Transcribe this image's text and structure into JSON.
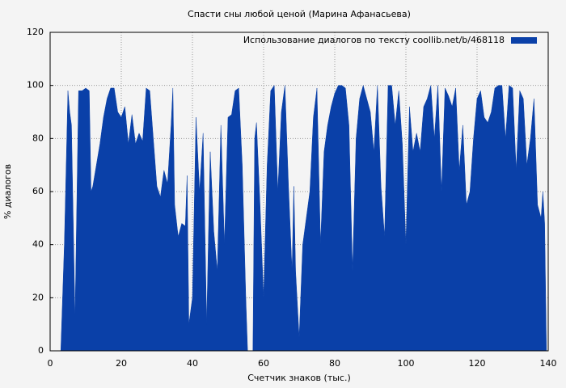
{
  "chart_data": {
    "type": "area",
    "title": "Спасти сны любой ценой (Марина Афанасьева)",
    "x_label": "Счетчик знаков (тыс.)",
    "y_label": "% диалогов",
    "legend": "top-right",
    "grid": true,
    "xlim": [
      0,
      140
    ],
    "xticks": [
      0,
      20,
      40,
      60,
      80,
      100,
      120,
      140
    ],
    "ylim": [
      0,
      120
    ],
    "yticks": [
      0,
      20,
      40,
      60,
      80,
      100,
      120
    ],
    "x": [
      0,
      3,
      4,
      5,
      5.5,
      6,
      7,
      8,
      9,
      10,
      11,
      11.5,
      12,
      13,
      14,
      15,
      16,
      17,
      18,
      19,
      20,
      21,
      22,
      23,
      24,
      25,
      26,
      27,
      28,
      29,
      30,
      31,
      32,
      33,
      34,
      34.5,
      35,
      36,
      37,
      38,
      38.5,
      39,
      40,
      41,
      42,
      43,
      44,
      45,
      46,
      47,
      48,
      49,
      50,
      51,
      52,
      53,
      54,
      55,
      55.5,
      56,
      57,
      57.5,
      58,
      59,
      60,
      61,
      62,
      63,
      64,
      65,
      66,
      67,
      68,
      68.5,
      69,
      70,
      71,
      72,
      73,
      74,
      75,
      76,
      77,
      78,
      79,
      80,
      81,
      82,
      83,
      84,
      85,
      86,
      87,
      88,
      89,
      90,
      91,
      92,
      93,
      94,
      95,
      96,
      97,
      98,
      99,
      100,
      101,
      102,
      103,
      104,
      105,
      106,
      107,
      108,
      109,
      110,
      111,
      112,
      113,
      114,
      115,
      116,
      117,
      118,
      119,
      120,
      121,
      122,
      123,
      124,
      125,
      126,
      127,
      128,
      129,
      130,
      131,
      132,
      133,
      134,
      135,
      136,
      137,
      138,
      138.5,
      139,
      139.5
    ],
    "series": [
      {
        "name": "Использование диалогов по тексту  coollib.net/b/468118",
        "color": "#0a40a8",
        "values": [
          0,
          0,
          40,
          98,
          90,
          85,
          12,
          98,
          98,
          99,
          98,
          60,
          62,
          70,
          78,
          88,
          95,
          99,
          99,
          90,
          88,
          92,
          78,
          89,
          78,
          82,
          79,
          99,
          98,
          80,
          62,
          58,
          68,
          63,
          85,
          99,
          55,
          43,
          48,
          47,
          66,
          10,
          20,
          88,
          60,
          82,
          10,
          75,
          45,
          30,
          85,
          40,
          88,
          89,
          98,
          99,
          70,
          20,
          0,
          0,
          0,
          80,
          86,
          55,
          20,
          70,
          98,
          100,
          60,
          90,
          100,
          62,
          30,
          62,
          30,
          5,
          40,
          50,
          60,
          88,
          99,
          40,
          75,
          85,
          92,
          97,
          100,
          100,
          99,
          85,
          30,
          80,
          95,
          100,
          95,
          90,
          75,
          100,
          62,
          43,
          100,
          100,
          85,
          98,
          78,
          40,
          92,
          75,
          82,
          75,
          92,
          95,
          100,
          80,
          100,
          60,
          99,
          96,
          92,
          99,
          68,
          85,
          55,
          60,
          80,
          95,
          98,
          88,
          86,
          90,
          99,
          100,
          100,
          80,
          100,
          99,
          68,
          98,
          95,
          70,
          80,
          95,
          55,
          50,
          60,
          48,
          0
        ]
      }
    ]
  }
}
